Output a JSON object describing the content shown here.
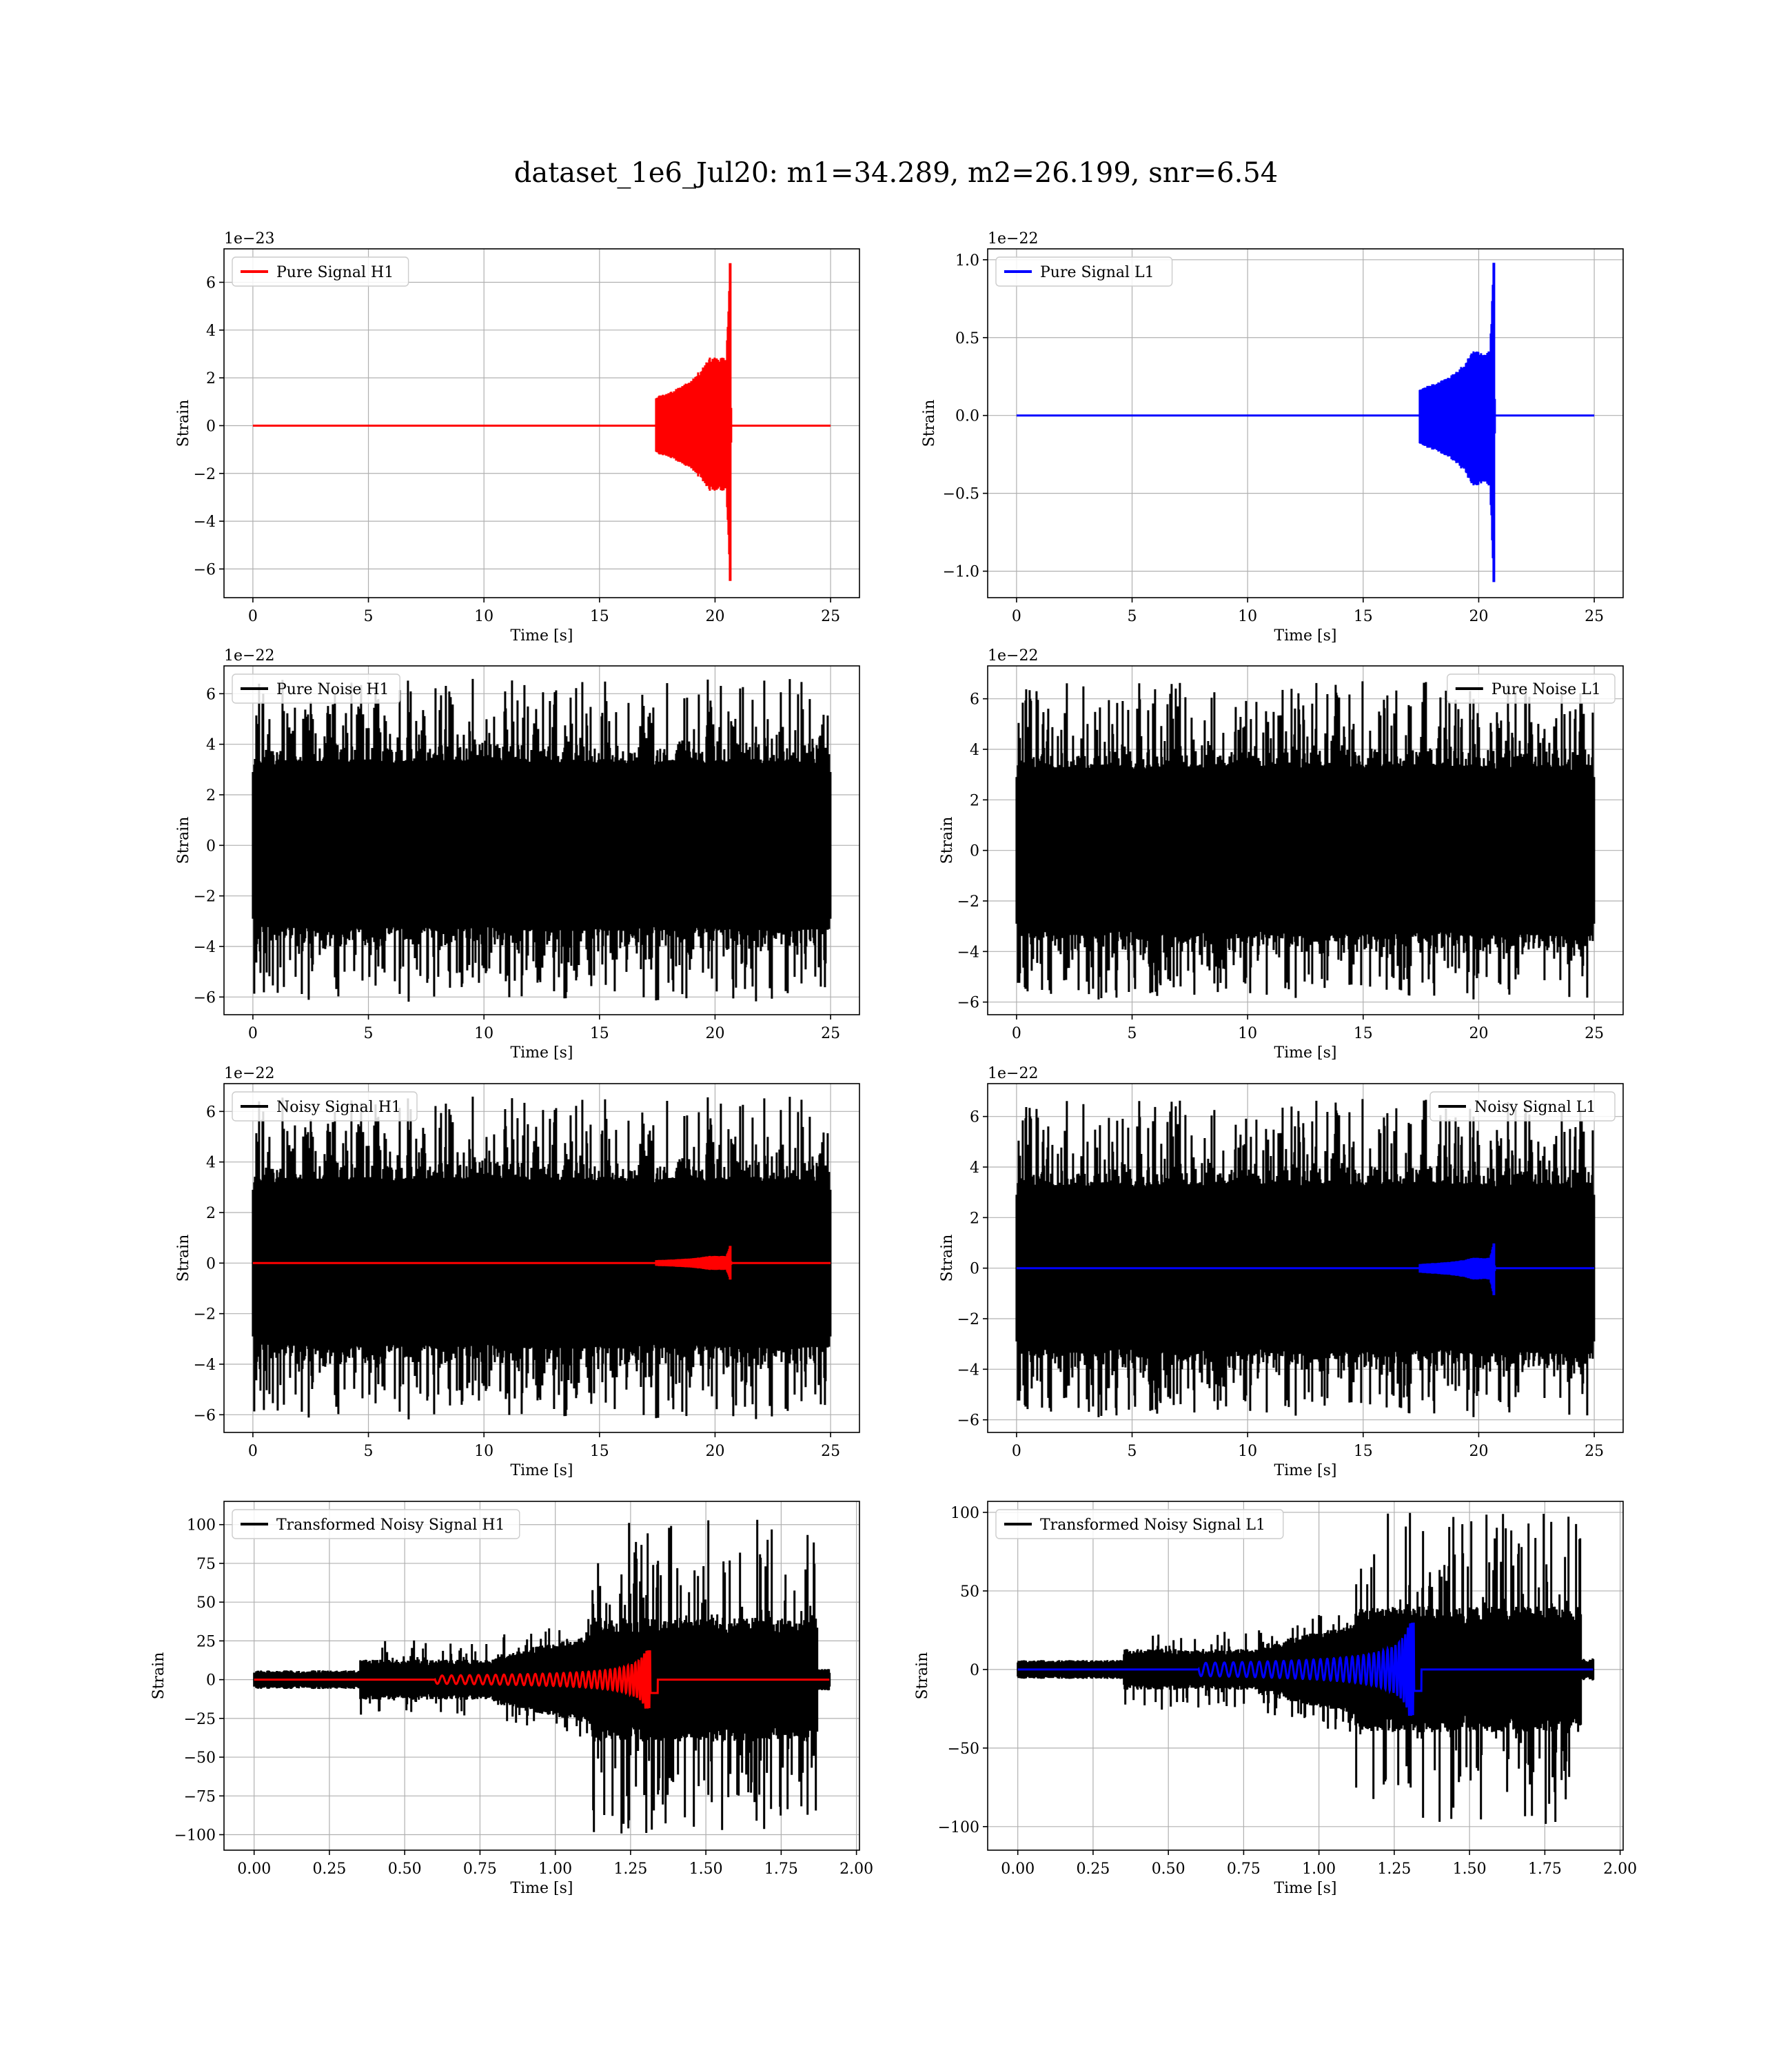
{
  "figure": {
    "title": "dataset_1e6_Jul20: m1=34.289, m2=26.199, snr=6.54"
  },
  "colors": {
    "red": "#ff0000",
    "blue": "#0000ff",
    "black": "#000000",
    "grid": "#b0b0b0"
  },
  "chart_data": [
    {
      "type": "line",
      "id": "pure_signal_h1",
      "ylabel": "Strain",
      "xlabel": "Time [s]",
      "exponent": "1e−23",
      "xlim": [
        -1.25,
        26.25
      ],
      "ylim": [
        -7.2,
        7.4
      ],
      "xticks": [
        0,
        5,
        10,
        15,
        20,
        25
      ],
      "xtick_labels": [
        "0",
        "5",
        "10",
        "15",
        "20",
        "25"
      ],
      "yticks": [
        -6,
        -4,
        -2,
        0,
        2,
        4,
        6
      ],
      "ytick_labels": [
        "−6",
        "−4",
        "−2",
        "0",
        "2",
        "4",
        "6"
      ],
      "legend": {
        "position": "upper-left"
      },
      "series": [
        {
          "name": "Pure Signal H1",
          "kind": "chirp",
          "color": "#ff0000",
          "t0": 0,
          "t1": 25,
          "tc": 20.65,
          "amp_max": 6.8,
          "amp_min": -6.5,
          "amp_early": 2.1,
          "seed": 11
        }
      ]
    },
    {
      "type": "line",
      "id": "pure_signal_l1",
      "ylabel": "Strain",
      "xlabel": "Time [s]",
      "exponent": "1e−22",
      "xlim": [
        -1.25,
        26.25
      ],
      "ylim": [
        -1.17,
        1.07
      ],
      "xticks": [
        0,
        5,
        10,
        15,
        20,
        25
      ],
      "xtick_labels": [
        "0",
        "5",
        "10",
        "15",
        "20",
        "25"
      ],
      "yticks": [
        -1.0,
        -0.5,
        0.0,
        0.5,
        1.0
      ],
      "ytick_labels": [
        "−1.0",
        "−0.5",
        "0.0",
        "0.5",
        "1.0"
      ],
      "legend": {
        "position": "upper-left"
      },
      "series": [
        {
          "name": "Pure Signal L1",
          "kind": "chirp",
          "color": "#0000ff",
          "t0": 0,
          "t1": 25,
          "tc": 20.65,
          "amp_max": 0.98,
          "amp_min": -1.07,
          "amp_early": 0.3,
          "seed": 12
        }
      ]
    },
    {
      "type": "line",
      "id": "pure_noise_h1",
      "ylabel": "Strain",
      "xlabel": "Time [s]",
      "exponent": "1e−22",
      "xlim": [
        -1.25,
        26.25
      ],
      "ylim": [
        -6.7,
        7.1
      ],
      "xticks": [
        0,
        5,
        10,
        15,
        20,
        25
      ],
      "xtick_labels": [
        "0",
        "5",
        "10",
        "15",
        "20",
        "25"
      ],
      "yticks": [
        -6,
        -4,
        -2,
        0,
        2,
        4,
        6
      ],
      "ytick_labels": [
        "−6",
        "−4",
        "−2",
        "0",
        "2",
        "4",
        "6"
      ],
      "legend": {
        "position": "upper-left"
      },
      "series": [
        {
          "name": "Pure Noise H1",
          "kind": "noise",
          "color": "#000000",
          "t0": 0,
          "t1": 25,
          "ymin": -6.2,
          "ymax": 6.6,
          "band": 3.4,
          "seed": 21
        }
      ]
    },
    {
      "type": "line",
      "id": "pure_noise_l1",
      "ylabel": "Strain",
      "xlabel": "Time [s]",
      "exponent": "1e−22",
      "xlim": [
        -1.25,
        26.25
      ],
      "ylim": [
        -6.5,
        7.3
      ],
      "xticks": [
        0,
        5,
        10,
        15,
        20,
        25
      ],
      "xtick_labels": [
        "0",
        "5",
        "10",
        "15",
        "20",
        "25"
      ],
      "yticks": [
        -6,
        -4,
        -2,
        0,
        2,
        4,
        6
      ],
      "ytick_labels": [
        "−6",
        "−4",
        "−2",
        "0",
        "2",
        "4",
        "6"
      ],
      "legend": {
        "position": "upper-right"
      },
      "series": [
        {
          "name": "Pure Noise L1",
          "kind": "noise",
          "color": "#000000",
          "t0": 0,
          "t1": 25,
          "ymin": -5.9,
          "ymax": 6.7,
          "band": 3.4,
          "seed": 22
        }
      ]
    },
    {
      "type": "line",
      "id": "noisy_signal_h1",
      "ylabel": "Strain",
      "xlabel": "Time [s]",
      "exponent": "1e−22",
      "xlim": [
        -1.25,
        26.25
      ],
      "ylim": [
        -6.7,
        7.1
      ],
      "xticks": [
        0,
        5,
        10,
        15,
        20,
        25
      ],
      "xtick_labels": [
        "0",
        "5",
        "10",
        "15",
        "20",
        "25"
      ],
      "yticks": [
        -6,
        -4,
        -2,
        0,
        2,
        4,
        6
      ],
      "ytick_labels": [
        "−6",
        "−4",
        "−2",
        "0",
        "2",
        "4",
        "6"
      ],
      "legend": {
        "position": "upper-left"
      },
      "series": [
        {
          "name": "Noisy Signal H1",
          "kind": "noise",
          "color": "#000000",
          "t0": 0,
          "t1": 25,
          "ymin": -6.2,
          "ymax": 6.6,
          "band": 3.4,
          "seed": 21
        },
        {
          "name": "",
          "kind": "chirp",
          "color": "#ff0000",
          "t0": 0,
          "t1": 25,
          "tc": 20.65,
          "amp_max": 0.68,
          "amp_min": -0.65,
          "amp_early": 0.21,
          "seed": 11
        }
      ]
    },
    {
      "type": "line",
      "id": "noisy_signal_l1",
      "ylabel": "Strain",
      "xlabel": "Time [s]",
      "exponent": "1e−22",
      "xlim": [
        -1.25,
        26.25
      ],
      "ylim": [
        -6.5,
        7.3
      ],
      "xticks": [
        0,
        5,
        10,
        15,
        20,
        25
      ],
      "xtick_labels": [
        "0",
        "5",
        "10",
        "15",
        "20",
        "25"
      ],
      "yticks": [
        -6,
        -4,
        -2,
        0,
        2,
        4,
        6
      ],
      "ytick_labels": [
        "−6",
        "−4",
        "−2",
        "0",
        "2",
        "4",
        "6"
      ],
      "legend": {
        "position": "upper-right"
      },
      "series": [
        {
          "name": "Noisy Signal L1",
          "kind": "noise",
          "color": "#000000",
          "t0": 0,
          "t1": 25,
          "ymin": -5.9,
          "ymax": 6.7,
          "band": 3.4,
          "seed": 22
        },
        {
          "name": "",
          "kind": "chirp",
          "color": "#0000ff",
          "t0": 0,
          "t1": 25,
          "tc": 20.65,
          "amp_max": 0.98,
          "amp_min": -1.07,
          "amp_early": 0.3,
          "seed": 12
        }
      ]
    },
    {
      "type": "line",
      "id": "transformed_h1",
      "ylabel": "Strain",
      "xlabel": "Time [s]",
      "exponent": "",
      "xlim": [
        -0.1,
        2.01
      ],
      "ylim": [
        -110,
        115
      ],
      "xticks": [
        0,
        0.25,
        0.5,
        0.75,
        1.0,
        1.25,
        1.5,
        1.75,
        2.0
      ],
      "xtick_labels": [
        "0.00",
        "0.25",
        "0.50",
        "0.75",
        "1.00",
        "1.25",
        "1.50",
        "1.75",
        "2.00"
      ],
      "yticks": [
        -100,
        -75,
        -50,
        -25,
        0,
        25,
        50,
        75,
        100
      ],
      "ytick_labels": [
        "−100",
        "−75",
        "−50",
        "−25",
        "0",
        "25",
        "50",
        "75",
        "100"
      ],
      "legend": {
        "position": "upper-left"
      },
      "series": [
        {
          "name": "Transformed Noisy Signal H1",
          "kind": "whitened",
          "color": "#000000",
          "t0": 0,
          "t1": 1.91,
          "ymin": -100,
          "ymax": 104,
          "seed": 31
        },
        {
          "name": "",
          "kind": "wchirp",
          "color": "#ff0000",
          "t0": 0,
          "t1": 1.91,
          "tc": 1.32,
          "amp_max": 19,
          "amp_min": -19,
          "seed": 41
        }
      ]
    },
    {
      "type": "line",
      "id": "transformed_l1",
      "ylabel": "Strain",
      "xlabel": "Time [s]",
      "exponent": "",
      "xlim": [
        -0.1,
        2.01
      ],
      "ylim": [
        -115,
        107
      ],
      "xticks": [
        0,
        0.25,
        0.5,
        0.75,
        1.0,
        1.25,
        1.5,
        1.75,
        2.0
      ],
      "xtick_labels": [
        "0.00",
        "0.25",
        "0.50",
        "0.75",
        "1.00",
        "1.25",
        "1.50",
        "1.75",
        "2.00"
      ],
      "yticks": [
        -100,
        -50,
        0,
        50,
        100
      ],
      "ytick_labels": [
        "−100",
        "−50",
        "0",
        "50",
        "100"
      ],
      "legend": {
        "position": "upper-left"
      },
      "series": [
        {
          "name": "Transformed Noisy Signal L1",
          "kind": "whitened",
          "color": "#000000",
          "t0": 0,
          "t1": 1.91,
          "ymin": -100,
          "ymax": 100,
          "seed": 32
        },
        {
          "name": "",
          "kind": "wchirp",
          "color": "#0000ff",
          "t0": 0,
          "t1": 1.91,
          "tc": 1.32,
          "amp_max": 30,
          "amp_min": -30,
          "seed": 42
        }
      ]
    }
  ]
}
